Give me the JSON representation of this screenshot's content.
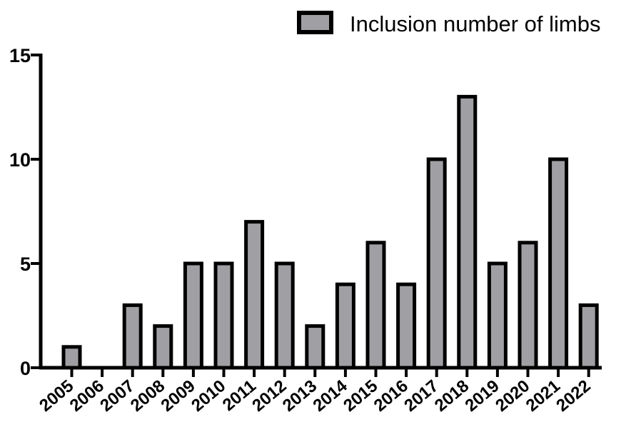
{
  "chart_data": {
    "type": "bar",
    "categories": [
      "2005",
      "2006",
      "2007",
      "2008",
      "2009",
      "2010",
      "2011",
      "2012",
      "2013",
      "2014",
      "2015",
      "2016",
      "2017",
      "2018",
      "2019",
      "2020",
      "2021",
      "2022"
    ],
    "series": [
      {
        "name": "Inclusion number of limbs",
        "values": [
          1,
          0,
          3,
          2,
          5,
          5,
          7,
          5,
          2,
          4,
          6,
          4,
          10,
          13,
          5,
          6,
          10,
          3
        ],
        "color": "#a0a0a4"
      }
    ],
    "title": "",
    "xlabel": "",
    "ylabel": "",
    "ylim": [
      0,
      15
    ],
    "yticks": [
      0,
      5,
      10,
      15
    ],
    "grid": false,
    "legend": "top-right"
  }
}
